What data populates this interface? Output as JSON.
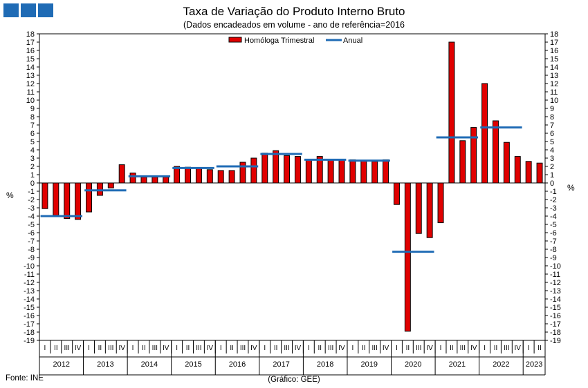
{
  "header": {
    "title": "Taxa de Variação do Produto Interno Bruto",
    "subtitle": "(Dados encadeados em volume  - ano de referência=2016",
    "unit_left": "%",
    "unit_right": "%"
  },
  "footer": {
    "source": "Fonte: INE",
    "credit": "(Gráfico: GEE)"
  },
  "colors": {
    "bar": "#e00000",
    "bar_stroke": "#000000",
    "line": "#1f6bb5",
    "logo": "#1f6bb5"
  },
  "chart_data": {
    "type": "bar",
    "title": "Taxa de Variação do Produto Interno Bruto",
    "subtitle": "(Dados encadeados em volume  - ano de referência=2016",
    "ylabel": "%",
    "ylim": [
      -19,
      18
    ],
    "yticks": [
      18,
      17,
      16,
      15,
      14,
      13,
      12,
      11,
      10,
      9,
      8,
      7,
      6,
      5,
      4,
      3,
      2,
      1,
      0,
      -1,
      -2,
      -3,
      -4,
      -5,
      -6,
      -7,
      -8,
      -9,
      -10,
      -11,
      -12,
      -13,
      -14,
      -15,
      -16,
      -17,
      -18,
      -19
    ],
    "legend": {
      "placement": "top",
      "items": [
        "Homóloga Trimestral",
        "Anual"
      ]
    },
    "quarter_labels": [
      "I",
      "II",
      "III",
      "IV"
    ],
    "years": [
      "2012",
      "2013",
      "2014",
      "2015",
      "2016",
      "2017",
      "2018",
      "2019",
      "2020",
      "2021",
      "2022",
      "2023"
    ],
    "series": [
      {
        "name": "Homóloga Trimestral",
        "type": "bar",
        "values": [
          -3.1,
          -3.9,
          -4.3,
          -4.4,
          -3.5,
          -1.5,
          -0.6,
          2.2,
          1.2,
          0.7,
          0.7,
          0.7,
          2.0,
          1.9,
          1.8,
          1.6,
          1.5,
          1.5,
          2.5,
          3.0,
          3.6,
          3.9,
          3.3,
          3.2,
          2.8,
          3.2,
          2.8,
          2.8,
          2.8,
          2.7,
          2.6,
          2.8,
          -2.6,
          -17.9,
          -6.1,
          -6.6,
          -4.8,
          17.0,
          5.1,
          6.7,
          12.0,
          7.5,
          4.9,
          3.2,
          2.6,
          2.4
        ]
      },
      {
        "name": "Anual",
        "type": "line",
        "values": [
          -4.0,
          -0.9,
          0.8,
          1.8,
          2.0,
          3.5,
          2.8,
          2.7,
          -8.3,
          5.5,
          6.7
        ]
      }
    ]
  }
}
